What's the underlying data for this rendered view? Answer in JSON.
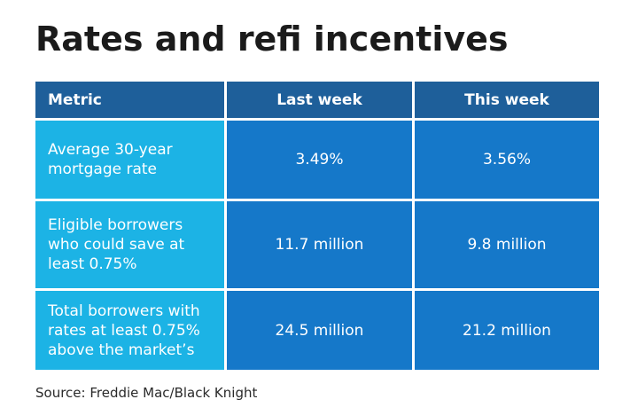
{
  "title": "Rates and refi incentives",
  "source": "Source: Freddie Mac/Black Knight",
  "chart_data": {
    "type": "table",
    "title": "Rates and refi incentives",
    "columns": [
      "Metric",
      "Last week",
      "This week"
    ],
    "rows": [
      {
        "metric": "Average 30-year\nmortgage rate",
        "last_week": "3.49%",
        "this_week": "3.56%"
      },
      {
        "metric": "Eligible borrowers\nwho could save at\nleast 0.75%",
        "last_week": "11.7 million",
        "this_week": "9.8 million"
      },
      {
        "metric": "Total borrowers with\nrates at least 0.75%\nabove the market’s",
        "last_week": "24.5 million",
        "this_week": "21.2 million"
      }
    ]
  },
  "colors": {
    "header": "#1e5f9a",
    "metric_column": "#1cb3e5",
    "value_cells": "#1578c9"
  }
}
